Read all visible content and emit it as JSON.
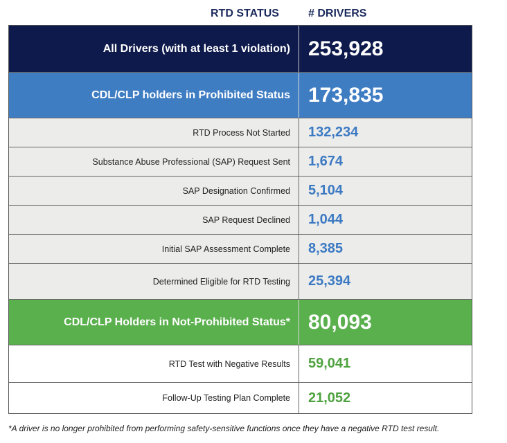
{
  "header": {
    "status": "RTD STATUS",
    "drivers": "# DRIVERS"
  },
  "rows": [
    {
      "label": "All Drivers (with at least 1 violation)",
      "value": "253,928"
    },
    {
      "label": "CDL/CLP holders in Prohibited Status",
      "value": "173,835"
    },
    {
      "label": "RTD Process Not Started",
      "value": "132,234"
    },
    {
      "label": "Substance Abuse Professional (SAP) Request Sent",
      "value": "1,674"
    },
    {
      "label": "SAP Designation Confirmed",
      "value": "5,104"
    },
    {
      "label": "SAP Request Declined",
      "value": "1,044"
    },
    {
      "label": "Initial SAP Assessment Complete",
      "value": "8,385"
    },
    {
      "label": "Determined Eligible for RTD Testing",
      "value": "25,394"
    },
    {
      "label": "CDL/CLP Holders in Not-Prohibited Status*",
      "value": "80,093"
    },
    {
      "label": "RTD Test with Negative Results",
      "value": "59,041"
    },
    {
      "label": "Follow-Up Testing Plan Complete",
      "value": "21,052"
    }
  ],
  "footnote": "*A driver is no longer prohibited from performing safety-sensitive functions once they have a negative RTD test result."
}
